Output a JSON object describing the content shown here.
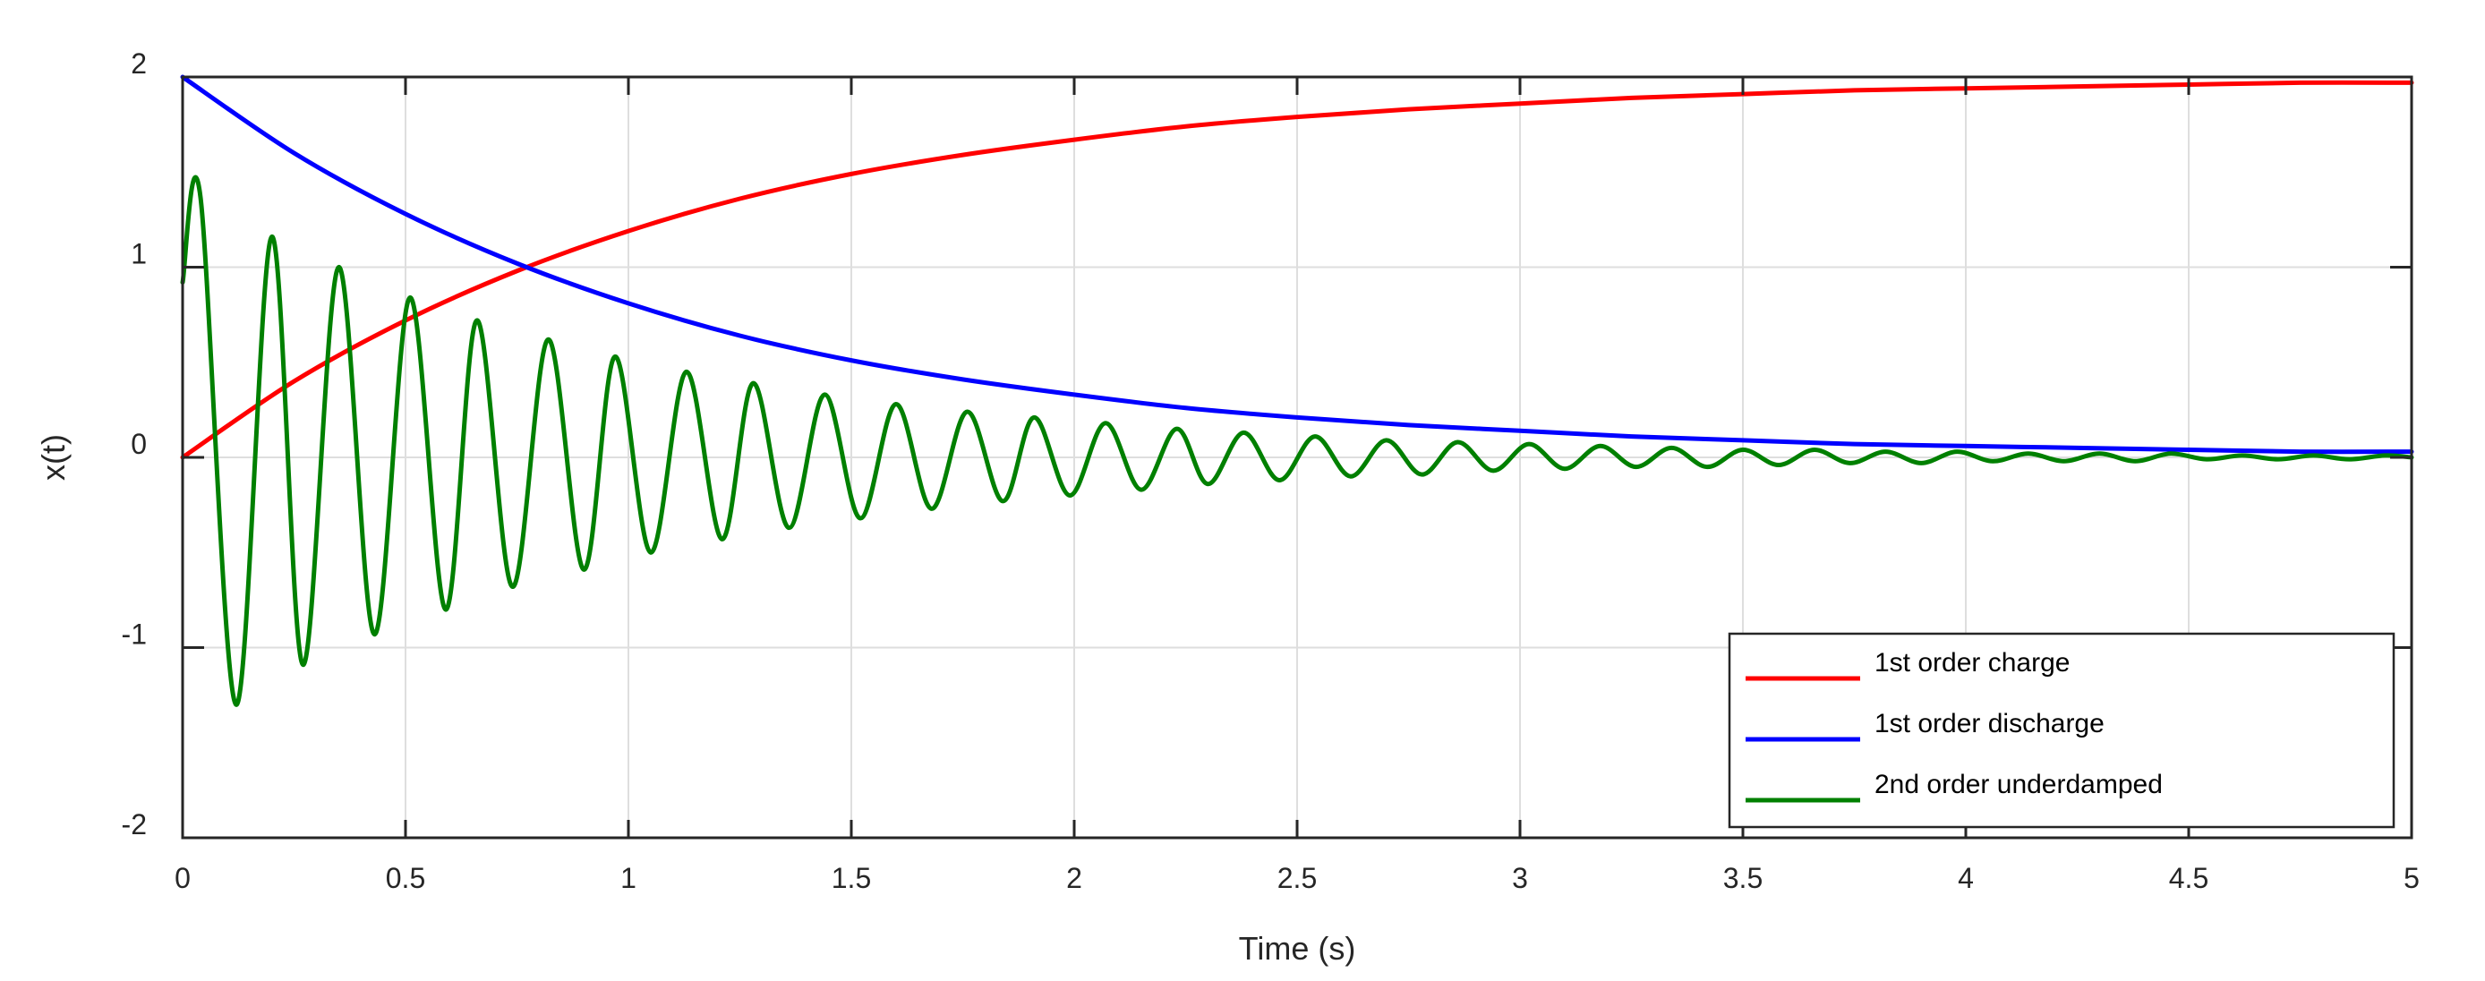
{
  "chart_data": {
    "type": "line",
    "title": "",
    "xlabel": "Time (s)",
    "ylabel": "x(t)",
    "xlim": [
      0,
      5
    ],
    "ylim": [
      -2,
      2
    ],
    "grid": true,
    "legend_position": "bottom-right",
    "x_ticks": [
      {
        "value": 0,
        "label": "0"
      },
      {
        "value": 0.5,
        "label": "0.5"
      },
      {
        "value": 1,
        "label": "1"
      },
      {
        "value": 1.5,
        "label": "1.5"
      },
      {
        "value": 2,
        "label": "2"
      },
      {
        "value": 2.5,
        "label": "2.5"
      },
      {
        "value": 3,
        "label": "3"
      },
      {
        "value": 3.5,
        "label": "3.5"
      },
      {
        "value": 4,
        "label": "4"
      },
      {
        "value": 4.5,
        "label": "4.5"
      },
      {
        "value": 5,
        "label": "5"
      }
    ],
    "y_ticks": [
      {
        "value": 2,
        "label": "2"
      },
      {
        "value": 1,
        "label": "1"
      },
      {
        "value": 0,
        "label": "0"
      },
      {
        "value": -1,
        "label": "-1"
      },
      {
        "value": -2,
        "label": "-2"
      }
    ],
    "series": [
      {
        "name": "1st order charge",
        "color": "#ff0000",
        "x": [
          0,
          0.25,
          0.5,
          0.75,
          1,
          1.25,
          1.5,
          1.75,
          2,
          2.25,
          2.5,
          2.75,
          3,
          3.25,
          3.5,
          3.75,
          4,
          4.25,
          4.5,
          4.75,
          5
        ],
        "y": [
          0,
          0.4,
          0.72,
          0.98,
          1.19,
          1.36,
          1.49,
          1.59,
          1.67,
          1.74,
          1.79,
          1.83,
          1.86,
          1.89,
          1.91,
          1.93,
          1.94,
          1.95,
          1.96,
          1.97,
          1.97
        ]
      },
      {
        "name": "1st order discharge",
        "color": "#0000ff",
        "x": [
          0,
          0.25,
          0.5,
          0.75,
          1,
          1.25,
          1.5,
          1.75,
          2,
          2.25,
          2.5,
          2.75,
          3,
          3.25,
          3.5,
          3.75,
          4,
          4.25,
          4.5,
          4.75,
          5
        ],
        "y": [
          2,
          1.6,
          1.28,
          1.02,
          0.81,
          0.64,
          0.51,
          0.41,
          0.33,
          0.26,
          0.21,
          0.17,
          0.14,
          0.11,
          0.09,
          0.07,
          0.06,
          0.05,
          0.04,
          0.03,
          0.03
        ]
      },
      {
        "name": "2nd order underdamped",
        "color": "#008000",
        "x": [
          0,
          0.04,
          0.12,
          0.2,
          0.27,
          0.35,
          0.43,
          0.51,
          0.59,
          0.66,
          0.74,
          0.82,
          0.9,
          0.97,
          1.05,
          1.13,
          1.21,
          1.28,
          1.36,
          1.44,
          1.52,
          1.6,
          1.68,
          1.76,
          1.84,
          1.91,
          1.99,
          2.07,
          2.15,
          2.23,
          2.3,
          2.38,
          2.46,
          2.54,
          2.62,
          2.7,
          2.78,
          2.86,
          2.94,
          3.02,
          3.1,
          3.18,
          3.26,
          3.34,
          3.42,
          3.5,
          3.58,
          3.66,
          3.74,
          3.82,
          3.9,
          3.98,
          4.06,
          4.14,
          4.22,
          4.3,
          4.38,
          4.46,
          4.54,
          4.62,
          4.7,
          4.78,
          4.86,
          4.94,
          5
        ],
        "y": [
          0.92,
          1.37,
          -1.3,
          1.16,
          -1.09,
          1.0,
          -0.93,
          0.84,
          -0.8,
          0.72,
          -0.68,
          0.62,
          -0.59,
          0.53,
          -0.5,
          0.45,
          -0.43,
          0.39,
          -0.37,
          0.33,
          -0.32,
          0.28,
          -0.27,
          0.24,
          -0.23,
          0.21,
          -0.2,
          0.18,
          -0.17,
          0.15,
          -0.14,
          0.13,
          -0.12,
          0.11,
          -0.1,
          0.09,
          -0.09,
          0.08,
          -0.07,
          0.07,
          -0.06,
          0.06,
          -0.05,
          0.05,
          -0.05,
          0.04,
          -0.04,
          0.04,
          -0.03,
          0.03,
          -0.03,
          0.03,
          -0.02,
          0.02,
          -0.02,
          0.02,
          -0.02,
          0.02,
          -0.01,
          0.01,
          -0.01,
          0.01,
          -0.01,
          0.01,
          0
        ]
      }
    ]
  }
}
